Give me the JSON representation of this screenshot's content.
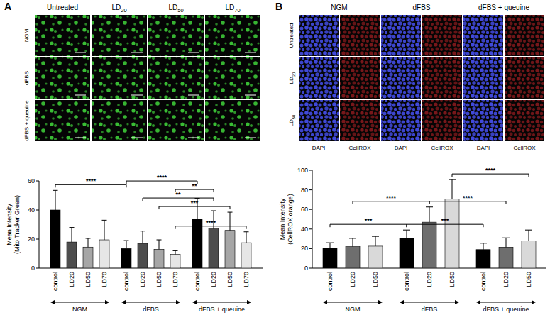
{
  "figure": {
    "panel_a": {
      "letter": "A",
      "columns": [
        "Untreated",
        "LD20",
        "LD50",
        "LD70"
      ],
      "rows": [
        "NGM",
        "dFBS",
        "dFBS + queuine"
      ]
    },
    "panel_b": {
      "letter": "B",
      "columns": [
        "NGM",
        "dFBS",
        "dFBS + queuine"
      ],
      "rows": [
        "Untreated",
        "LD20",
        "LD50"
      ],
      "channels": [
        "DAPI",
        "CellROX"
      ]
    }
  },
  "chart_data": [
    {
      "type": "bar",
      "y_label": [
        "Mean Intensity",
        "(Mito Tracker Green)"
      ],
      "categories": [
        "control",
        "LD20",
        "LD50",
        "LD70",
        "control",
        "LD20",
        "LD50",
        "LD70",
        "control",
        "LD20",
        "LD50",
        "LD70"
      ],
      "groups": [
        "NGM",
        "dFBS",
        "dFBS + queuine"
      ],
      "values": [
        40,
        18,
        14.5,
        19.5,
        13.5,
        17,
        13,
        9.5,
        34,
        27,
        26,
        17.5
      ],
      "errors": [
        13.5,
        10,
        6,
        13.5,
        5.5,
        8.5,
        6.5,
        2.5,
        14,
        12.5,
        12.5,
        7.5
      ],
      "colors": [
        "#000000",
        "#4d4d4d",
        "#a6a6a6",
        "#e6e6e6",
        "#000000",
        "#4d4d4d",
        "#a6a6a6",
        "#e6e6e6",
        "#000000",
        "#4d4d4d",
        "#a6a6a6",
        "#e6e6e6"
      ],
      "ylim": [
        0,
        60
      ],
      "yticks": [
        0,
        20,
        40,
        60
      ],
      "significance": [
        {
          "from": 7,
          "to": 11,
          "label": "****"
        },
        {
          "from": 6,
          "to": 10,
          "label": "***"
        },
        {
          "from": 5,
          "to": 9,
          "label": "**"
        },
        {
          "from": 7,
          "to": 9,
          "label": "**"
        },
        {
          "from": 0,
          "to": 4,
          "label": "****"
        },
        {
          "from": 4,
          "to": 8,
          "label": "****"
        }
      ]
    },
    {
      "type": "bar",
      "y_label": [
        "Mean Intensity",
        "(CellROX orange)"
      ],
      "categories": [
        "control",
        "LD20",
        "LD50",
        "control",
        "LD20",
        "LD50",
        "control",
        "LD20",
        "LD50"
      ],
      "groups": [
        "NGM",
        "dFBS",
        "dFBS + queuine"
      ],
      "values": [
        20.5,
        22,
        22.5,
        30.5,
        47,
        70.5,
        19,
        21.5,
        28
      ],
      "errors": [
        5.5,
        8.5,
        10,
        8.5,
        15.5,
        20,
        6.5,
        9.5,
        11
      ],
      "colors": [
        "#000000",
        "#6e6e6e",
        "#d9d9d9",
        "#000000",
        "#6e6e6e",
        "#d9d9d9",
        "#000000",
        "#6e6e6e",
        "#d9d9d9"
      ],
      "ylim": [
        0,
        100
      ],
      "yticks": [
        0,
        20,
        40,
        60,
        80,
        100
      ],
      "significance": [
        {
          "from": 0,
          "to": 3,
          "label": "***"
        },
        {
          "from": 3,
          "to": 6,
          "label": "***"
        },
        {
          "from": 4,
          "to": 7,
          "label": "****"
        },
        {
          "from": 5,
          "to": 8,
          "label": "****"
        },
        {
          "from": 1,
          "to": 4,
          "label": "****"
        }
      ]
    }
  ]
}
